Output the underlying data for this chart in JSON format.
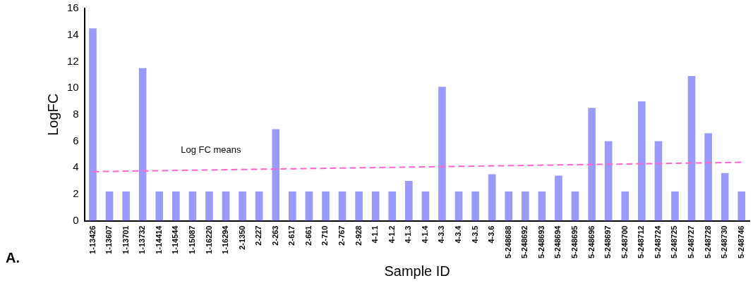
{
  "chart_data": {
    "type": "bar",
    "xlabel": "Sample ID",
    "ylabel": "LogFC",
    "categories": [
      "1-13426",
      "1-13607",
      "1-13701",
      "1-13732",
      "1-14414",
      "1-14544",
      "1-15087",
      "1-16220",
      "1-16294",
      "2-1350",
      "2-227",
      "2-263",
      "2-617",
      "2-661",
      "2-710",
      "2-767",
      "2-928",
      "4-1.1",
      "4-1.2",
      "4-1.3",
      "4-1.4",
      "4-3.3",
      "4-3.4",
      "4-3.5",
      "4-3.6",
      "5-248688",
      "5-248692",
      "5-248693",
      "5-248694",
      "5-248695",
      "5-248696",
      "5-248697",
      "5-248700",
      "5-248712",
      "5-248724",
      "5-248725",
      "5-248727",
      "5-248728",
      "5-248730",
      "5-248746"
    ],
    "series": [
      {
        "color": "#9999ff",
        "values": [
          14.5,
          2.2,
          2.2,
          11.5,
          2.2,
          2.2,
          2.2,
          2.2,
          2.2,
          2.2,
          2.2,
          6.9,
          2.2,
          2.2,
          2.2,
          2.2,
          2.2,
          2.2,
          2.2,
          3.0,
          2.2,
          10.1,
          2.2,
          2.2,
          3.5,
          2.2,
          2.2,
          2.2,
          3.4,
          2.2,
          8.5,
          6.0,
          2.2,
          9.0,
          6.0,
          2.2,
          10.9,
          6.6,
          3.6,
          2.2
        ]
      },
      {
        "type": "line",
        "color": "#ff66cc",
        "line_style": "dashed",
        "marker": "none",
        "x": [
          "1-13426",
          "5-248746"
        ],
        "values": [
          3.7,
          4.4
        ]
      }
    ],
    "ylim": [
      0,
      16
    ],
    "yticks": [
      0,
      2,
      4,
      6,
      8,
      10,
      12,
      14,
      16
    ],
    "grid": false,
    "legend": false,
    "annotations": [
      "Log FC means",
      "A."
    ]
  }
}
